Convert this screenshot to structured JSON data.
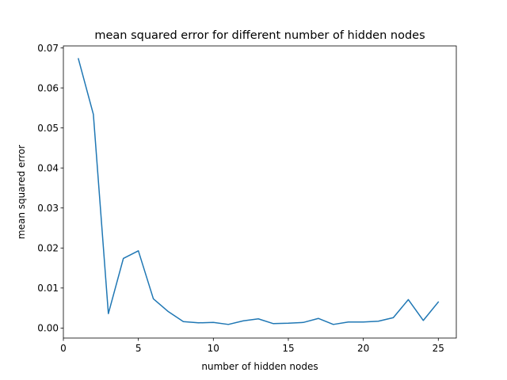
{
  "chart_data": {
    "type": "line",
    "title": "mean squared error for different number of hidden nodes",
    "xlabel": "number of hidden nodes",
    "ylabel": "mean squared error",
    "xlim": [
      0,
      26.2
    ],
    "ylim": [
      -0.0025,
      0.0705
    ],
    "xticks": [
      0,
      5,
      10,
      15,
      20,
      25
    ],
    "xtick_labels": [
      "0",
      "5",
      "10",
      "15",
      "20",
      "25"
    ],
    "yticks": [
      0.0,
      0.01,
      0.02,
      0.03,
      0.04,
      0.05,
      0.06,
      0.07
    ],
    "ytick_labels": [
      "0.00",
      "0.01",
      "0.02",
      "0.03",
      "0.04",
      "0.05",
      "0.06",
      "0.07"
    ],
    "grid": false,
    "series": [
      {
        "color": "#1f77b4",
        "x": [
          1,
          2,
          3,
          4,
          5,
          6,
          7,
          8,
          9,
          10,
          11,
          12,
          13,
          14,
          15,
          16,
          17,
          18,
          19,
          20,
          21,
          22,
          23,
          24,
          25
        ],
        "y": [
          0.0673,
          0.0534,
          0.0036,
          0.0174,
          0.0193,
          0.0073,
          0.0041,
          0.0016,
          0.0013,
          0.0014,
          0.0009,
          0.0018,
          0.0023,
          0.0011,
          0.0012,
          0.0014,
          0.0024,
          0.0009,
          0.0015,
          0.0015,
          0.0017,
          0.0026,
          0.0071,
          0.0019,
          0.0065
        ]
      }
    ]
  }
}
